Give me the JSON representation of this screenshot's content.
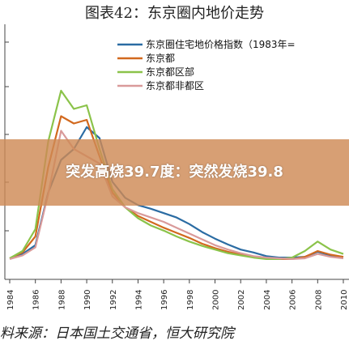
{
  "page_title": "图表42：东京圈内地价走势",
  "overlay": {
    "headline": "突发高烧39.7度：突然发烧39.8"
  },
  "source_note": "料来源：日本国土交通省，恒大研究院",
  "chart_data": {
    "type": "line",
    "title": "图表42：东京圈内地价走势",
    "x": [
      1984,
      1985,
      1986,
      1987,
      1988,
      1989,
      1990,
      1991,
      1992,
      1993,
      1994,
      1995,
      1996,
      1997,
      1998,
      1999,
      2000,
      2001,
      2002,
      2003,
      2004,
      2005,
      2006,
      2007,
      2008,
      2009,
      2010
    ],
    "x_ticks": [
      "1984",
      "1986",
      "1988",
      "1990",
      "1992",
      "1994",
      "1996",
      "1998",
      "2000",
      "2002",
      "2004",
      "2006",
      "2008",
      "2010"
    ],
    "ylim": [
      0,
      270
    ],
    "grid": false,
    "legend_position": "top",
    "series": [
      {
        "name": "东京圈住宅地价格指数（1983年=",
        "color": "#2b6ca3",
        "values": [
          10,
          16,
          28,
          100,
          145,
          160,
          190,
          175,
          115,
          93,
          83,
          78,
          72,
          66,
          57,
          46,
          37,
          29,
          22,
          18,
          13,
          11,
          11,
          12,
          19,
          14,
          12
        ]
      },
      {
        "name": "东京都",
        "color": "#d2691e",
        "values": [
          10,
          18,
          40,
          135,
          205,
          195,
          200,
          150,
          100,
          80,
          68,
          60,
          52,
          45,
          38,
          30,
          24,
          19,
          15,
          12,
          10,
          9,
          9,
          12,
          20,
          15,
          12
        ]
      },
      {
        "name": "东京都区部",
        "color": "#8bc34a",
        "values": [
          10,
          20,
          50,
          170,
          240,
          215,
          220,
          160,
          105,
          80,
          65,
          55,
          48,
          40,
          33,
          27,
          22,
          17,
          14,
          11,
          9,
          9,
          11,
          20,
          33,
          22,
          16
        ]
      },
      {
        "name": "东京都非都区",
        "color": "#d99a9a",
        "values": [
          9,
          14,
          25,
          98,
          185,
          160,
          150,
          140,
          95,
          80,
          72,
          66,
          60,
          52,
          44,
          36,
          28,
          22,
          17,
          13,
          11,
          10,
          9,
          10,
          16,
          12,
          10
        ]
      }
    ]
  }
}
